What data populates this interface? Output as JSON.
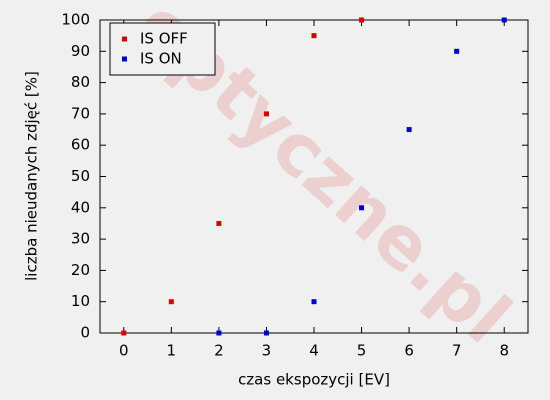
{
  "chart_data": {
    "type": "scatter",
    "x_label": "czas ekspozycji [EV]",
    "y_label": "liczba nieudanych zdjęć [%]",
    "watermark": "optyczne.pl",
    "series": [
      {
        "name": "IS OFF",
        "color": "#dd0000",
        "x": [
          0,
          1,
          2,
          3,
          4,
          5
        ],
        "values": [
          0,
          10,
          35,
          70,
          95,
          100
        ]
      },
      {
        "name": "IS ON",
        "color": "#0000dd",
        "x": [
          2,
          3,
          4,
          5,
          6,
          7,
          8
        ],
        "values": [
          0,
          0,
          10,
          40,
          65,
          90,
          100
        ]
      }
    ],
    "xlim": [
      -0.5,
      8.5
    ],
    "xticks": [
      0,
      1,
      2,
      3,
      4,
      5,
      6,
      7,
      8
    ],
    "ylim": [
      0,
      100
    ],
    "yticks": [
      0,
      10,
      20,
      30,
      40,
      50,
      60,
      70,
      80,
      90,
      100
    ],
    "legend": "upper left",
    "grid": false
  }
}
